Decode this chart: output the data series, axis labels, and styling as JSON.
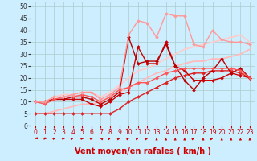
{
  "bg_color": "#cceeff",
  "grid_color": "#aacccc",
  "xlim": [
    -0.5,
    23.5
  ],
  "ylim": [
    0,
    52
  ],
  "xticks": [
    0,
    1,
    2,
    3,
    4,
    5,
    6,
    7,
    8,
    9,
    10,
    11,
    12,
    13,
    14,
    15,
    16,
    17,
    18,
    19,
    20,
    21,
    22,
    23
  ],
  "yticks": [
    0,
    5,
    10,
    15,
    20,
    25,
    30,
    35,
    40,
    45,
    50
  ],
  "lines": [
    {
      "x": [
        0,
        1,
        2,
        3,
        4,
        5,
        6,
        7,
        8,
        9,
        10,
        11,
        12,
        13,
        14,
        15,
        16,
        17,
        18,
        19,
        20,
        21,
        22,
        23
      ],
      "y": [
        5,
        5,
        5,
        5,
        5,
        5,
        5,
        5,
        5,
        7,
        10,
        12,
        14,
        16,
        18,
        20,
        21,
        22,
        22,
        23,
        23,
        23,
        22,
        20
      ],
      "color": "#dd2222",
      "lw": 1.0,
      "marker": "D",
      "ms": 2.0
    },
    {
      "x": [
        0,
        1,
        2,
        3,
        4,
        5,
        6,
        7,
        8,
        9,
        10,
        11,
        12,
        13,
        14,
        15,
        16,
        17,
        18,
        19,
        20,
        21,
        22,
        23
      ],
      "y": [
        10,
        10,
        11,
        11,
        11,
        11,
        9,
        8,
        10,
        13,
        14,
        33,
        26,
        26,
        35,
        25,
        23,
        19,
        19,
        19,
        20,
        22,
        21,
        20
      ],
      "color": "#cc0000",
      "lw": 1.0,
      "marker": "D",
      "ms": 2.0
    },
    {
      "x": [
        0,
        1,
        2,
        3,
        4,
        5,
        6,
        7,
        8,
        9,
        10,
        11,
        12,
        13,
        14,
        15,
        16,
        17,
        18,
        19,
        20,
        21,
        22,
        23
      ],
      "y": [
        10,
        10,
        11,
        11,
        12,
        12,
        11,
        9,
        11,
        14,
        37,
        26,
        27,
        27,
        34,
        25,
        19,
        15,
        20,
        23,
        28,
        22,
        24,
        20
      ],
      "color": "#bb0000",
      "lw": 1.0,
      "marker": "D",
      "ms": 2.0
    },
    {
      "x": [
        0,
        1,
        2,
        3,
        4,
        5,
        6,
        7,
        8,
        9,
        10,
        11,
        12,
        13,
        14,
        15,
        16,
        17,
        18,
        19,
        20,
        21,
        22,
        23
      ],
      "y": [
        10,
        9,
        11,
        12,
        12,
        13,
        12,
        10,
        12,
        15,
        16,
        18,
        18,
        20,
        22,
        23,
        24,
        24,
        24,
        24,
        24,
        24,
        23,
        20
      ],
      "color": "#ff5555",
      "lw": 1.0,
      "marker": "D",
      "ms": 2.0
    },
    {
      "x": [
        0,
        1,
        2,
        3,
        4,
        5,
        6,
        7,
        8,
        9,
        10,
        11,
        12,
        13,
        14,
        15,
        16,
        17,
        18,
        19,
        20,
        21,
        22,
        23
      ],
      "y": [
        10,
        10,
        12,
        12,
        13,
        14,
        14,
        11,
        13,
        16,
        38,
        44,
        43,
        37,
        47,
        46,
        46,
        34,
        33,
        40,
        36,
        35,
        35,
        34
      ],
      "color": "#ff9999",
      "lw": 1.0,
      "marker": "D",
      "ms": 2.0
    },
    {
      "x": [
        0,
        1,
        2,
        3,
        4,
        5,
        6,
        7,
        8,
        9,
        10,
        11,
        12,
        13,
        14,
        15,
        16,
        17,
        18,
        19,
        20,
        21,
        22,
        23
      ],
      "y": [
        5,
        5,
        6,
        7,
        8,
        9,
        9,
        10,
        12,
        14,
        16,
        18,
        20,
        22,
        23,
        25,
        26,
        27,
        27,
        28,
        28,
        29,
        30,
        32
      ],
      "color": "#ffbbbb",
      "lw": 1.3,
      "marker": null,
      "ms": 0
    },
    {
      "x": [
        0,
        1,
        2,
        3,
        4,
        5,
        6,
        7,
        8,
        9,
        10,
        11,
        12,
        13,
        14,
        15,
        16,
        17,
        18,
        19,
        20,
        21,
        22,
        23
      ],
      "y": [
        10,
        10,
        12,
        13,
        13,
        14,
        14,
        12,
        14,
        17,
        20,
        23,
        24,
        26,
        28,
        30,
        32,
        33,
        34,
        35,
        36,
        37,
        38,
        35
      ],
      "color": "#ffcccc",
      "lw": 1.3,
      "marker": null,
      "ms": 0
    }
  ],
  "xlabel": "Vent moyen/en rafales ( km/h )",
  "xlabel_color": "#cc0000",
  "xlabel_fontsize": 7,
  "tick_color": "#cc0000",
  "ytick_color": "#333333",
  "tick_fontsize": 5.5,
  "arrow_color": "#cc0000"
}
